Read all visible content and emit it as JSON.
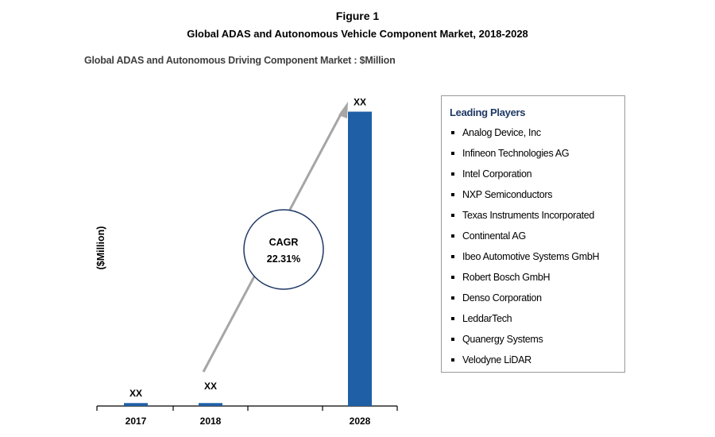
{
  "figure": {
    "label": "Figure 1",
    "title": "Global ADAS and Autonomous Vehicle Component Market, 2018-2028"
  },
  "chart_data": {
    "type": "bar",
    "title": "Global ADAS and Autonomous Driving Component Market : $Million",
    "ylabel": "($Million)",
    "xlabel": "",
    "categories": [
      "2017",
      "2018",
      "2028"
    ],
    "values": [
      1,
      1,
      100
    ],
    "value_labels": [
      "XX",
      "XX",
      "XX"
    ],
    "ylim": [
      0,
      105
    ],
    "grid": false,
    "bar_color": "#1f5fa6",
    "annotation": {
      "label": "CAGR",
      "value": "22.31%",
      "arrow_color": "#a6a6a6",
      "circle_color": "#1f3864"
    }
  },
  "players": {
    "heading": "Leading Players",
    "heading_color": "#1f3864",
    "items": [
      "Analog Device, Inc",
      "Infineon Technologies AG",
      "Intel Corporation",
      "NXP Semiconductors",
      "Texas Instruments Incorporated",
      "Continental AG",
      "Ibeo Automotive Systems GmbH",
      "Robert Bosch GmbH",
      "Denso Corporation",
      "LeddarTech",
      "Quanergy Systems",
      "Velodyne LiDAR"
    ]
  }
}
